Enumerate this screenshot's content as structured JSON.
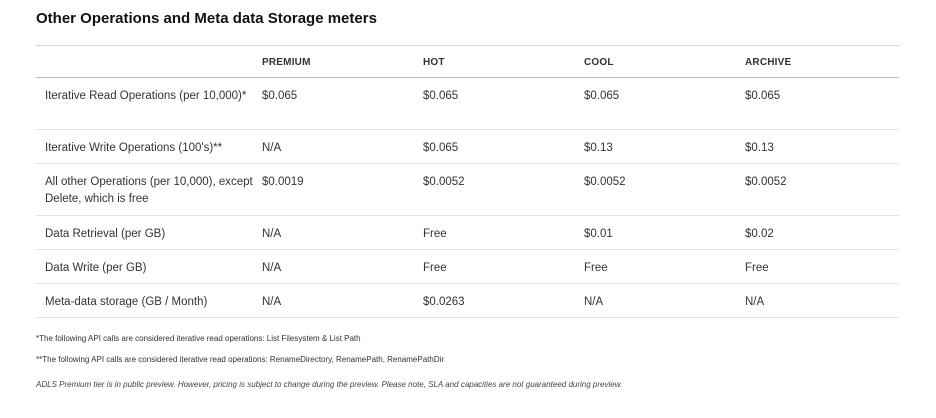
{
  "title": "Other Operations and Meta data Storage meters",
  "table": {
    "headers": [
      "",
      "PREMIUM",
      "HOT",
      "COOL",
      "ARCHIVE"
    ],
    "rows": [
      {
        "operation": "Iterative Read Operations (per 10,000)*",
        "premium": "$0.065",
        "hot": "$0.065",
        "cool": "$0.065",
        "archive": "$0.065"
      },
      {
        "operation": "Iterative Write Operations (100's)**",
        "premium": "N/A",
        "hot": "$0.065",
        "cool": "$0.13",
        "archive": "$0.13"
      },
      {
        "operation": "All other Operations (per 10,000), except Delete, which is free",
        "premium": "$0.0019",
        "hot": "$0.0052",
        "cool": "$0.0052",
        "archive": "$0.0052"
      },
      {
        "operation": "Data Retrieval (per GB)",
        "premium": "N/A",
        "hot": "Free",
        "cool": "$0.01",
        "archive": "$0.02"
      },
      {
        "operation": "Data Write (per GB)",
        "premium": "N/A",
        "hot": "Free",
        "cool": "Free",
        "archive": "Free"
      },
      {
        "operation": "Meta-data storage (GB / Month)",
        "premium": "N/A",
        "hot": "$0.0263",
        "cool": "N/A",
        "archive": "N/A"
      }
    ]
  },
  "footnotes": {
    "read": "*The following API calls are considered iterative read operations: List Filesystem & List Path",
    "write": "**The following API calls are considered iterative read operations: RenameDirectory, RenamePath, RenamePathDir",
    "preview": "ADLS Premium tier is in public preview. However, pricing is subject to change during the preview. Please note, SLA and capacities are not guaranteed during preview."
  }
}
